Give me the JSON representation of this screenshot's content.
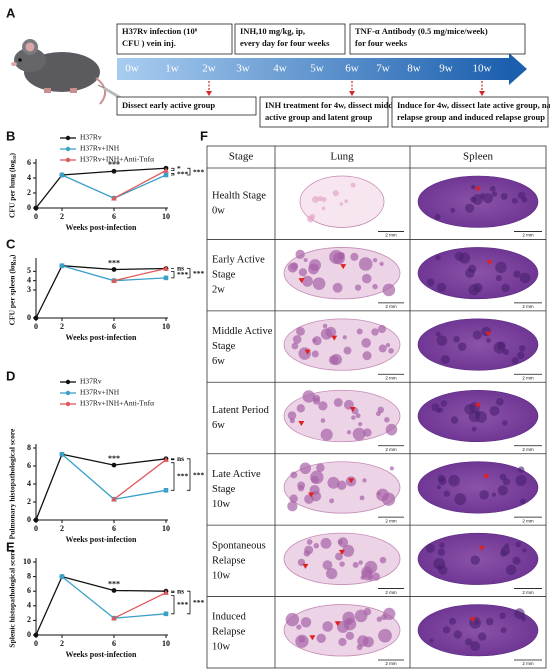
{
  "panel_labels": [
    "A",
    "B",
    "C",
    "D",
    "E",
    "F"
  ],
  "timeline": {
    "top_boxes": [
      [
        "H37Rv infection (10⁶",
        "CFU ) vein inj."
      ],
      [
        "INH,10 mg/kg, ip,",
        "every day for four weeks"
      ],
      [
        "TNF-α Antibody  (0.5 mg/mice/week)",
        "for four weeks"
      ]
    ],
    "weeks": [
      "0w",
      "1w",
      "2w",
      "3w",
      "4w",
      "5w",
      "6w",
      "7w",
      "8w",
      "9w",
      "10w"
    ],
    "bottom_boxes": [
      [
        "Dissect early active group"
      ],
      [
        "INH treatment for 4w, dissect middle",
        "active group and latent group"
      ],
      [
        "Induce for 4w, dissect late active group, natural",
        "relapse group and induced relapse group"
      ]
    ]
  },
  "chart_data": [
    {
      "type": "line",
      "ylabel": "CFU per lung (log₁₀)",
      "xlabel": "Weeks post-infection",
      "x": [
        0,
        2,
        6,
        10
      ],
      "xlim": [
        0,
        10
      ],
      "xticks": [
        0,
        2,
        6,
        10
      ],
      "ylim": [
        0,
        6
      ],
      "yticks": [
        0,
        2,
        4,
        6
      ],
      "legend": true,
      "series": [
        {
          "name": "H37Rv",
          "color": "#111111",
          "values": [
            0,
            4.4,
            4.9,
            5.3
          ]
        },
        {
          "name": "H37Rv+INH",
          "color": "#3aa0c8",
          "values": [
            null,
            4.4,
            1.3,
            4.4
          ]
        },
        {
          "name": "H37Rv+INH+Anti-Tnfα",
          "color": "#e0585a",
          "values": [
            null,
            null,
            1.3,
            5.0
          ]
        }
      ],
      "annotations": [
        "***",
        "*",
        "***",
        "***"
      ]
    },
    {
      "type": "line",
      "ylabel": "CFU per spleen (log₁₀)",
      "xlabel": "Weeks post-infection",
      "x": [
        0,
        2,
        6,
        10
      ],
      "xlim": [
        0,
        10
      ],
      "xticks": [
        0,
        2,
        6,
        10
      ],
      "ylim": [
        0,
        6
      ],
      "yticks": [
        0,
        3,
        4,
        5
      ],
      "legend": false,
      "series": [
        {
          "name": "H37Rv",
          "color": "#111111",
          "values": [
            0,
            5.6,
            5.2,
            5.3
          ]
        },
        {
          "name": "H37Rv+INH",
          "color": "#3aa0c8",
          "values": [
            null,
            5.6,
            4.0,
            4.3
          ]
        },
        {
          "name": "H37Rv+INH+Anti-Tnfα",
          "color": "#e0585a",
          "values": [
            null,
            null,
            4.0,
            5.3
          ]
        }
      ],
      "annotations": [
        "***",
        "ns",
        "***",
        "***"
      ]
    },
    {
      "type": "line",
      "ylabel": "Pulmonary histopathological score",
      "xlabel": "Weeks post-infection",
      "x": [
        0,
        2,
        6,
        10
      ],
      "xlim": [
        0,
        10
      ],
      "xticks": [
        0,
        2,
        6,
        10
      ],
      "ylim": [
        0,
        8
      ],
      "yticks": [
        0,
        2,
        4,
        6,
        8
      ],
      "legend": true,
      "series": [
        {
          "name": "H37Rv",
          "color": "#111111",
          "values": [
            0,
            7.3,
            6.1,
            6.8
          ]
        },
        {
          "name": "H37Rv+INH",
          "color": "#3aa0c8",
          "values": [
            null,
            7.3,
            2.3,
            3.3
          ]
        },
        {
          "name": "H37Rv+INH+Anti-Tnfα",
          "color": "#e0585a",
          "values": [
            null,
            null,
            2.3,
            6.7
          ]
        }
      ],
      "annotations": [
        "***",
        "ns",
        "***",
        "***"
      ]
    },
    {
      "type": "line",
      "ylabel": "Splenic histopathological score",
      "xlabel": "Weeks post-infection",
      "x": [
        0,
        2,
        6,
        10
      ],
      "xlim": [
        0,
        10
      ],
      "xticks": [
        0,
        2,
        6,
        10
      ],
      "ylim": [
        0,
        10
      ],
      "yticks": [
        0,
        2,
        4,
        6,
        8,
        10
      ],
      "legend": false,
      "series": [
        {
          "name": "H37Rv",
          "color": "#111111",
          "values": [
            0,
            8.0,
            6.1,
            6.0
          ]
        },
        {
          "name": "H37Rv+INH",
          "color": "#3aa0c8",
          "values": [
            null,
            8.0,
            2.3,
            2.9
          ]
        },
        {
          "name": "H37Rv+INH+Anti-Tnfα",
          "color": "#e0585a",
          "values": [
            null,
            null,
            2.3,
            5.8
          ]
        }
      ],
      "annotations": [
        "***",
        "ns",
        "***",
        "***"
      ]
    }
  ],
  "table": {
    "header": [
      "Stage",
      "Lung",
      "Spleen"
    ],
    "scale_label": "2 mm",
    "rows": [
      [
        "Health Stage",
        "0w"
      ],
      [
        "Early Active",
        "Stage",
        "2w"
      ],
      [
        "Middle Active",
        "Stage",
        "6w"
      ],
      [
        "Latent Period",
        "6w"
      ],
      [
        "Late Active",
        "Stage",
        "10w"
      ],
      [
        "Spontaneous",
        "Relapse",
        "10w"
      ],
      [
        "Induced",
        "Relapse",
        "10w"
      ]
    ]
  }
}
